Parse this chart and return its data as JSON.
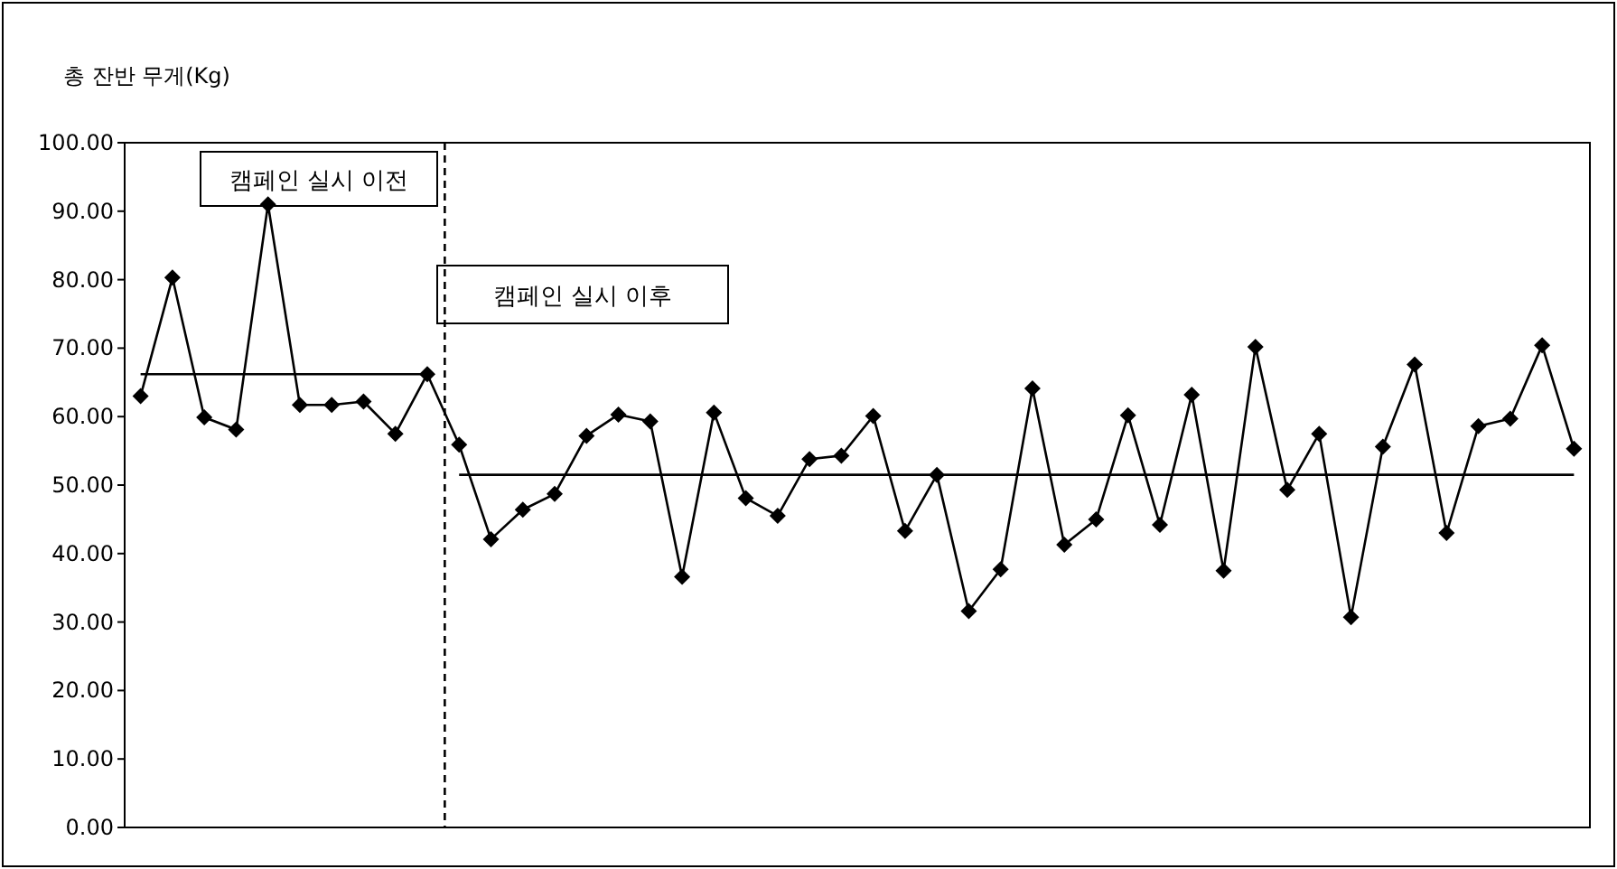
{
  "chart_data": {
    "type": "line",
    "ylabel": "총 잔반 무게(Kg)",
    "categories": [
      null,
      null,
      null,
      null,
      null,
      null,
      null,
      null,
      null,
      null,
      null,
      null,
      null,
      null,
      null,
      null,
      null,
      null,
      null,
      null,
      null,
      null,
      null,
      null,
      null,
      null,
      null,
      null,
      null,
      null,
      null,
      null,
      null,
      null,
      null,
      null,
      null,
      null,
      null,
      null,
      null,
      null,
      null,
      null,
      null,
      null
    ],
    "ylim": [
      0,
      100
    ],
    "yticks": [
      {
        "value": 0,
        "label": "0.00"
      },
      {
        "value": 10,
        "label": "10.00"
      },
      {
        "value": 20,
        "label": "20.00"
      },
      {
        "value": 30,
        "label": "30.00"
      },
      {
        "value": 40,
        "label": "40.00"
      },
      {
        "value": 50,
        "label": "50.00"
      },
      {
        "value": 60,
        "label": "60.00"
      },
      {
        "value": 70,
        "label": "70.00"
      },
      {
        "value": 80,
        "label": "80.00"
      },
      {
        "value": 90,
        "label": "90.00"
      },
      {
        "value": 100,
        "label": "100.00"
      }
    ],
    "tick_labels": "y",
    "marker": "diamond",
    "line_style": "solid",
    "series": [
      {
        "color": "#000000",
        "values": [
          63.0,
          80.3,
          59.9,
          58.1,
          91.0,
          61.7,
          61.7,
          62.2,
          57.5,
          66.2,
          55.9,
          42.1,
          46.4,
          48.7,
          57.2,
          60.3,
          59.3,
          36.6,
          60.6,
          48.1,
          45.5,
          53.8,
          54.3,
          60.1,
          43.3,
          51.5,
          31.6,
          37.7,
          64.1,
          41.3,
          45.0,
          60.2,
          44.2,
          63.2,
          37.5,
          70.2,
          49.3,
          57.5,
          30.7,
          55.6,
          67.6,
          43.0,
          58.6,
          59.7,
          70.4,
          55.3
        ]
      },
      {
        "color": "#000000",
        "marker": "none",
        "values": [
          66.2,
          66.2,
          66.2,
          66.2,
          66.2,
          66.2,
          66.2,
          66.2,
          66.2,
          66.2,
          null,
          null,
          null,
          null,
          null,
          null,
          null,
          null,
          null,
          null,
          null,
          null,
          null,
          null,
          null,
          null,
          null,
          null,
          null,
          null,
          null,
          null,
          null,
          null,
          null,
          null,
          null,
          null,
          null,
          null,
          null,
          null,
          null,
          null,
          null,
          null
        ]
      },
      {
        "color": "#000000",
        "marker": "none",
        "values": [
          null,
          null,
          null,
          null,
          null,
          null,
          null,
          null,
          null,
          null,
          51.5,
          51.5,
          51.5,
          51.5,
          51.5,
          51.5,
          51.5,
          51.5,
          51.5,
          51.5,
          51.5,
          51.5,
          51.5,
          51.5,
          51.5,
          51.5,
          51.5,
          51.5,
          51.5,
          51.5,
          51.5,
          51.5,
          51.5,
          51.5,
          51.5,
          51.5,
          51.5,
          51.5,
          51.5,
          51.5,
          51.5,
          51.5,
          51.5,
          51.5,
          51.5,
          51.5
        ]
      }
    ],
    "ref_lines": [
      {
        "axis": "x",
        "line_style": "dashed",
        "color": "#000000"
      }
    ],
    "annotations": [
      "캠페인 실시 이전",
      "캠페인 실시 이후"
    ]
  }
}
